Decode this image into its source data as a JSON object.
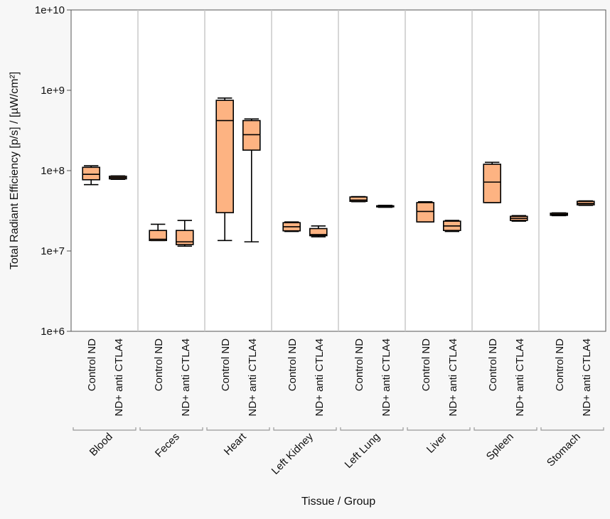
{
  "chart_data": {
    "type": "boxplot",
    "title": "",
    "ylabel": "Total Radiant Efficiency [p/s] / [µW/cm²]",
    "xlabel": "Tissue / Group",
    "yscale": "log",
    "ylim": [
      1000000,
      10000000000
    ],
    "yticks": [
      {
        "value": 1000000,
        "label": "1e+6"
      },
      {
        "value": 10000000,
        "label": "1e+7"
      },
      {
        "value": 100000000,
        "label": "1e+8"
      },
      {
        "value": 1000000000,
        "label": "1e+9"
      },
      {
        "value": 10000000000,
        "label": "1e+10"
      }
    ],
    "box_color": "#fdb382",
    "tissues": [
      {
        "name": "Blood",
        "groups": [
          {
            "label": "Control ND",
            "min": 67000000,
            "q1": 77000000,
            "median": 90000000,
            "q3": 110000000,
            "max": 115000000
          },
          {
            "label": "ND+ anti CTLA4",
            "min": 78000000,
            "q1": 79000000,
            "median": 82000000,
            "q3": 85000000,
            "max": 86000000
          }
        ]
      },
      {
        "name": "Feces",
        "groups": [
          {
            "label": "Control ND",
            "min": 13500000,
            "q1": 13500000,
            "median": 14000000,
            "q3": 18000000,
            "max": 21500000
          },
          {
            "label": "ND+ anti CTLA4",
            "min": 11500000,
            "q1": 12000000,
            "median": 13000000,
            "q3": 18000000,
            "max": 24000000
          }
        ]
      },
      {
        "name": "Heart",
        "groups": [
          {
            "label": "Control ND",
            "min": 13500000,
            "q1": 30000000,
            "median": 420000000,
            "q3": 750000000,
            "max": 800000000
          },
          {
            "label": "ND+ anti CTLA4",
            "min": 13000000,
            "q1": 180000000,
            "median": 280000000,
            "q3": 420000000,
            "max": 440000000
          }
        ]
      },
      {
        "name": "Left Kidney",
        "groups": [
          {
            "label": "Control ND",
            "min": 17500000,
            "q1": 17800000,
            "median": 20000000,
            "q3": 22500000,
            "max": 23000000
          },
          {
            "label": "ND+ anti CTLA4",
            "min": 15000000,
            "q1": 15500000,
            "median": 16000000,
            "q3": 19000000,
            "max": 20500000
          }
        ]
      },
      {
        "name": "Left Lung",
        "groups": [
          {
            "label": "Control ND",
            "min": 41000000,
            "q1": 41500000,
            "median": 43000000,
            "q3": 47000000,
            "max": 47500000
          },
          {
            "label": "ND+ anti CTLA4",
            "min": 35000000,
            "q1": 35500000,
            "median": 36000000,
            "q3": 36500000,
            "max": 37000000
          }
        ]
      },
      {
        "name": "Liver",
        "groups": [
          {
            "label": "Control ND",
            "min": 23000000,
            "q1": 23000000,
            "median": 31000000,
            "q3": 40000000,
            "max": 41000000
          },
          {
            "label": "ND+ anti CTLA4",
            "min": 17500000,
            "q1": 18000000,
            "median": 20500000,
            "q3": 23500000,
            "max": 24000000
          }
        ]
      },
      {
        "name": "Spleen",
        "groups": [
          {
            "label": "Control ND",
            "min": 40000000,
            "q1": 40000000,
            "median": 72000000,
            "q3": 120000000,
            "max": 127000000
          },
          {
            "label": "ND+ anti CTLA4",
            "min": 23500000,
            "q1": 24000000,
            "median": 25500000,
            "q3": 27000000,
            "max": 27500000
          }
        ]
      },
      {
        "name": "Stomach",
        "groups": [
          {
            "label": "Control ND",
            "min": 27500000,
            "q1": 27800000,
            "median": 28500000,
            "q3": 29500000,
            "max": 29800000
          },
          {
            "label": "ND+ anti CTLA4",
            "min": 37000000,
            "q1": 37500000,
            "median": 39000000,
            "q3": 41500000,
            "max": 42000000
          }
        ]
      }
    ]
  }
}
